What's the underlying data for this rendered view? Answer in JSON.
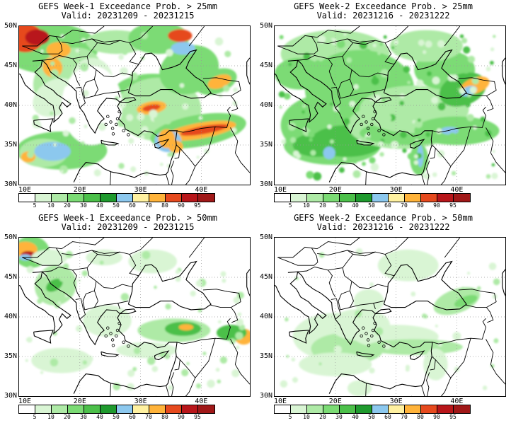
{
  "panels": [
    {
      "title": "GEFS Week-1 Exceedance Prob. > 25mm",
      "valid": "Valid: 20231209 - 20231215",
      "threshold": 25,
      "week": 1
    },
    {
      "title": "GEFS Week-2 Exceedance Prob. > 25mm",
      "valid": "Valid: 20231216 - 20231222",
      "threshold": 25,
      "week": 2
    },
    {
      "title": "GEFS Week-1 Exceedance Prob. > 50mm",
      "valid": "Valid: 20231209 - 20231215",
      "threshold": 50,
      "week": 1
    },
    {
      "title": "GEFS Week-2 Exceedance Prob. > 50mm",
      "valid": "Valid: 20231216 - 20231222",
      "threshold": 50,
      "week": 2
    }
  ],
  "lat_labels": [
    "50N",
    "45N",
    "40N",
    "35N",
    "30N"
  ],
  "lon_labels": [
    "10E",
    "20E",
    "30E",
    "40E"
  ],
  "colorbar": {
    "ticks": [
      "5",
      "10",
      "20",
      "30",
      "40",
      "50",
      "60",
      "70",
      "80",
      "90",
      "95"
    ],
    "colors": [
      "#ffffff",
      "#d9f5d4",
      "#aeeaa6",
      "#7bdb74",
      "#4cc04a",
      "#1f9a2e",
      "#8cc8ee",
      "#fff1a0",
      "#ffb33a",
      "#e64a1e",
      "#b8161a",
      "#a01818"
    ]
  }
}
